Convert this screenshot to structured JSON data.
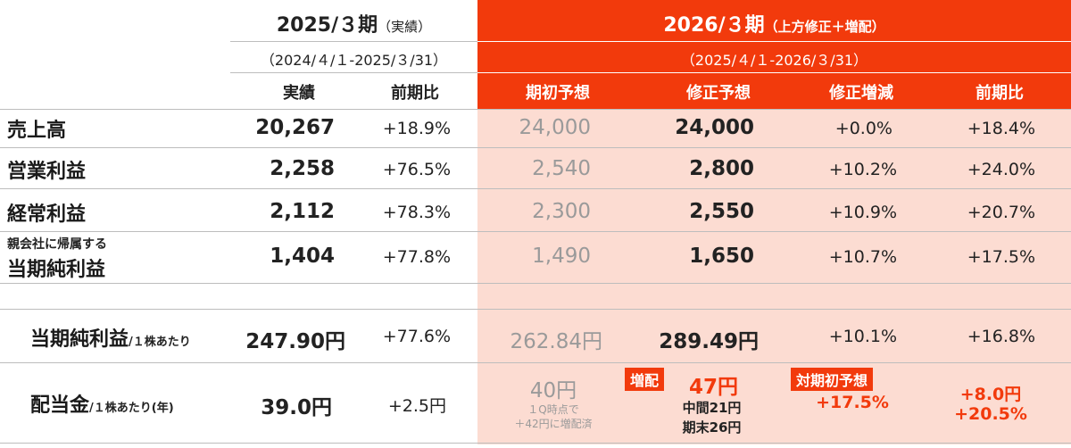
{
  "header": {
    "prev_period_title": "2025/３期",
    "prev_period_note": "（実績）",
    "prev_period_range": "（2024/４/１-2025/３/31）",
    "curr_period_title": "2026/３期",
    "curr_period_note": "（上方修正＋増配）",
    "curr_period_range": "（2025/４/１-2026/３/31）",
    "columns": [
      "実績",
      "前期比",
      "期初予想",
      "修正予想",
      "修正増減",
      "前期比"
    ]
  },
  "rows": [
    {
      "label": "売上高",
      "actual": "20,267",
      "yoy": "+18.9%",
      "initial": "24,000",
      "revised": "24,000",
      "change": "+0.0%",
      "yoy2": "+18.4%"
    },
    {
      "label": "営業利益",
      "actual": "2,258",
      "yoy": "+76.5%",
      "initial": "2,540",
      "revised": "2,800",
      "change": "+10.2%",
      "yoy2": "+24.0%"
    },
    {
      "label": "経常利益",
      "actual": "2,112",
      "yoy": "+78.3%",
      "initial": "2,300",
      "revised": "2,550",
      "change": "+10.9%",
      "yoy2": "+20.7%"
    },
    {
      "label_small": "親会社に帰属する",
      "label": "当期純利益",
      "actual": "1,404",
      "yoy": "+77.8%",
      "initial": "1,490",
      "revised": "1,650",
      "change": "+10.7%",
      "yoy2": "+17.5%"
    }
  ],
  "eps_row": {
    "label": "当期純利益",
    "label_suffix": "/１株あたり",
    "actual": "247.90円",
    "yoy": "+77.6%",
    "initial": "262.84円",
    "revised": "289.49円",
    "change": "+10.1%",
    "yoy2": "+16.8%"
  },
  "dividend_row": {
    "label": "配当金",
    "label_suffix": "/１株あたり(年)",
    "actual": "39.0円",
    "yoy": "+2.5円",
    "initial": "40円",
    "initial_note1": "１Q時点で",
    "initial_note2": "＋42円に増配済",
    "tag_increase": "増配",
    "revised": "47円",
    "interim": "中間21円",
    "year_end": "期末26円",
    "tag_vs_initial": "対期初予想",
    "change": "+17.5%",
    "yoy2_a": "+8.0円",
    "yoy2_b": "+20.5%"
  },
  "colors": {
    "accent": "#f23a0c",
    "band": "#fcdcd2",
    "line": "#bdbdbd"
  }
}
